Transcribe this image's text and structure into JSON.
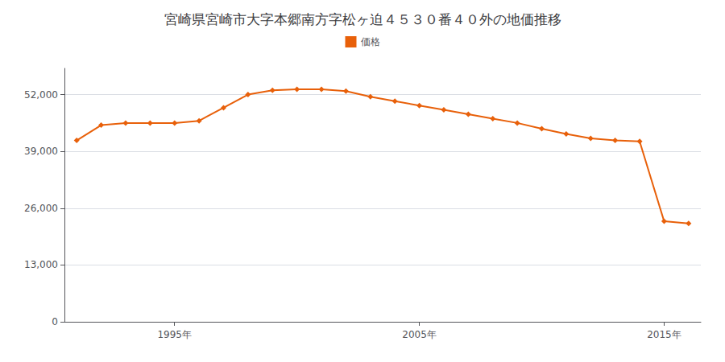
{
  "chart_data": {
    "type": "line",
    "title": "宮崎県宮崎市大字本郷南方字松ヶ迫４５３０番４０外の地価推移",
    "x": [
      1991,
      1992,
      1993,
      1994,
      1995,
      1996,
      1997,
      1998,
      1999,
      2000,
      2001,
      2002,
      2003,
      2004,
      2005,
      2006,
      2007,
      2008,
      2009,
      2010,
      2011,
      2012,
      2013,
      2014,
      2015,
      2016
    ],
    "series": [
      {
        "name": "価格",
        "color": "#E8600A",
        "marker": "diamond",
        "values": [
          41500,
          45000,
          45500,
          45500,
          45500,
          46000,
          49000,
          52000,
          53000,
          53200,
          53200,
          52800,
          51500,
          50500,
          49500,
          48500,
          47500,
          46500,
          45500,
          44200,
          43000,
          42000,
          41500,
          41300,
          23000,
          22500
        ]
      }
    ],
    "xlim": [
      1990.5,
      2016.5
    ],
    "xticks": [
      {
        "value": 1995,
        "label": "1995年"
      },
      {
        "value": 2005,
        "label": "2005年"
      },
      {
        "value": 2015,
        "label": "2015年"
      }
    ],
    "ylim": [
      0,
      58000
    ],
    "yticks": [
      0,
      {
        "value": 13000,
        "label": "13,000"
      },
      {
        "value": 26000,
        "label": "26,000"
      },
      {
        "value": 39000,
        "label": "39,000"
      },
      {
        "value": 52000,
        "label": "52,000"
      }
    ],
    "grid": "y",
    "legend": "top"
  }
}
